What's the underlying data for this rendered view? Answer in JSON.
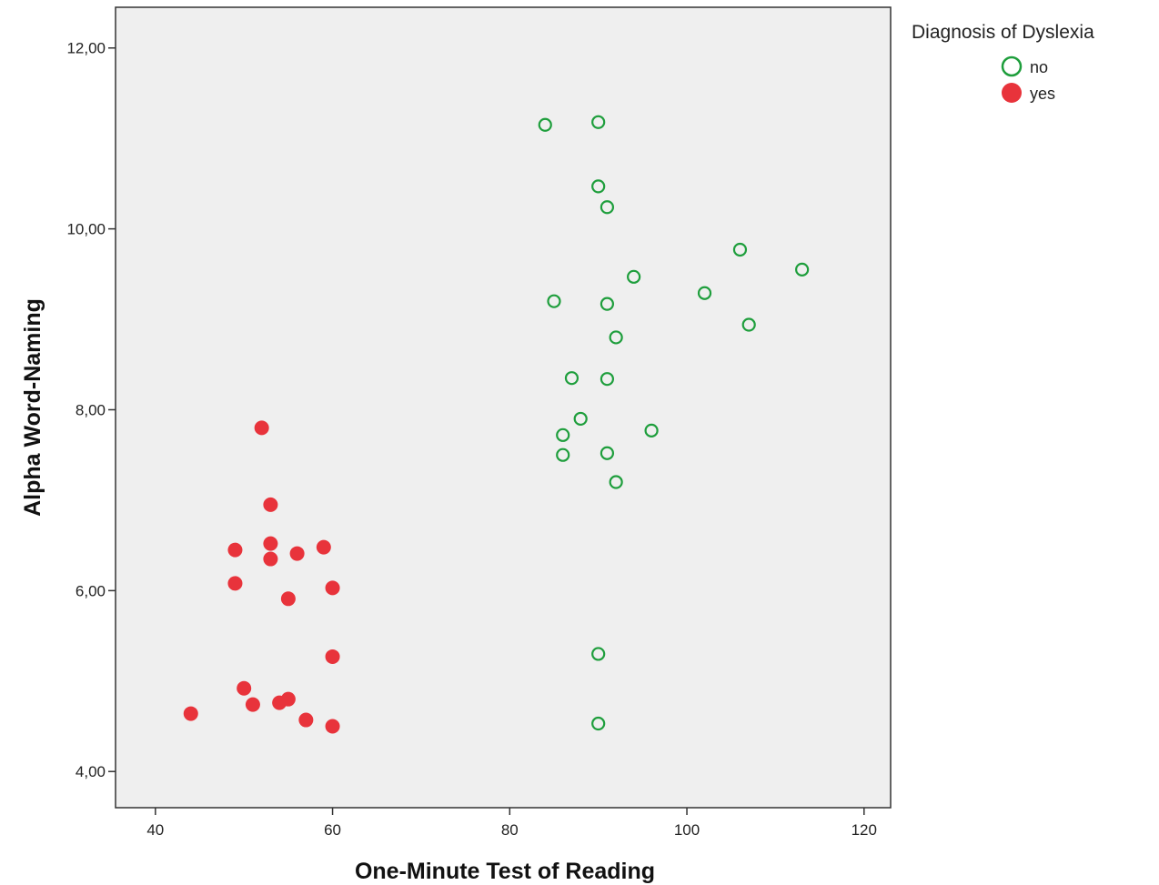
{
  "chart_data": {
    "type": "scatter",
    "xlabel": "One-Minute Test of Reading",
    "ylabel": "Alpha Word-Naming",
    "xlim": [
      35.5,
      123
    ],
    "ylim": [
      3.6,
      12.45
    ],
    "xticks": [
      40,
      60,
      80,
      100,
      120
    ],
    "yticks": [
      4,
      6,
      8,
      10,
      12
    ],
    "xtick_labels": [
      "40",
      "60",
      "80",
      "100",
      "120"
    ],
    "ytick_labels": [
      "4,00",
      "6,00",
      "8,00",
      "10,00",
      "12,00"
    ],
    "grid": false,
    "background": "#efefef",
    "legend": {
      "title": "Diagnosis of Dyslexia",
      "placement": "top-right outside",
      "entries": [
        {
          "label": "no",
          "marker": "open-circle",
          "color": "#1e9e3c"
        },
        {
          "label": "yes",
          "marker": "filled-circle",
          "color": "#e8333b"
        }
      ]
    },
    "series": [
      {
        "name": "no",
        "marker": "open-circle",
        "color": "#1e9e3c",
        "points": [
          [
            84,
            11.15
          ],
          [
            90,
            11.18
          ],
          [
            90,
            10.47
          ],
          [
            91,
            10.24
          ],
          [
            106,
            9.77
          ],
          [
            113,
            9.55
          ],
          [
            94,
            9.47
          ],
          [
            102,
            9.29
          ],
          [
            85,
            9.2
          ],
          [
            91,
            9.17
          ],
          [
            107,
            8.94
          ],
          [
            92,
            8.8
          ],
          [
            87,
            8.35
          ],
          [
            91,
            8.34
          ],
          [
            88,
            7.9
          ],
          [
            96,
            7.77
          ],
          [
            86,
            7.72
          ],
          [
            86,
            7.5
          ],
          [
            91,
            7.52
          ],
          [
            92,
            7.2
          ],
          [
            90,
            5.3
          ],
          [
            90,
            4.53
          ]
        ]
      },
      {
        "name": "yes",
        "marker": "filled-circle",
        "color": "#e8333b",
        "points": [
          [
            52,
            7.8
          ],
          [
            53,
            6.95
          ],
          [
            49,
            6.45
          ],
          [
            53,
            6.52
          ],
          [
            53,
            6.35
          ],
          [
            56,
            6.41
          ],
          [
            59,
            6.48
          ],
          [
            49,
            6.08
          ],
          [
            60,
            6.03
          ],
          [
            55,
            5.91
          ],
          [
            60,
            5.27
          ],
          [
            50,
            4.92
          ],
          [
            51,
            4.74
          ],
          [
            54,
            4.76
          ],
          [
            55,
            4.8
          ],
          [
            44,
            4.64
          ],
          [
            57,
            4.57
          ],
          [
            60,
            4.5
          ]
        ]
      }
    ]
  }
}
